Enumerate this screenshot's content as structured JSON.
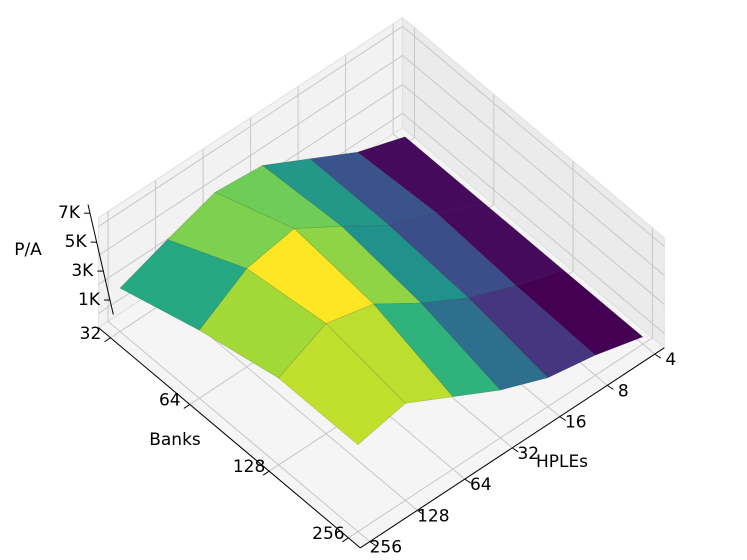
{
  "chart_data": {
    "type": "surface3d",
    "x_label": "Banks",
    "y_label": "HPLEs",
    "z_label": "P/A",
    "banks": [
      32,
      64,
      128,
      256
    ],
    "hples": [
      4,
      8,
      16,
      32,
      64,
      128,
      256
    ],
    "z": [
      [
        500,
        1600,
        3300,
        5000,
        5300,
        4200,
        3000
      ],
      [
        500,
        2000,
        3300,
        5400,
        7400,
        6800,
        4700
      ],
      [
        500,
        1600,
        2900,
        4700,
        6800,
        7600,
        6000
      ],
      [
        500,
        1400,
        2000,
        3300,
        5000,
        6700,
        6000
      ]
    ],
    "zlim": [
      0,
      7600
    ],
    "zticks": [
      {
        "value": 1000,
        "label": "1K"
      },
      {
        "value": 3000,
        "label": "3K"
      },
      {
        "value": 5000,
        "label": "5K"
      },
      {
        "value": 7000,
        "label": "7K"
      }
    ],
    "colormap": "viridis",
    "grid": true
  }
}
